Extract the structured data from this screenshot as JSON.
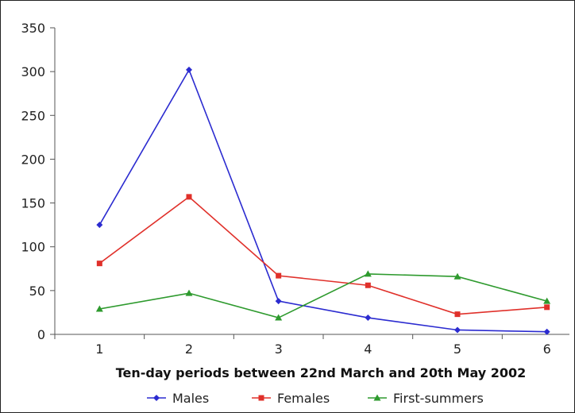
{
  "chart_data": {
    "type": "line",
    "title": "",
    "xlabel": "Ten-day periods between 22nd March and 20th May 2002",
    "ylabel": "",
    "categories": [
      "1",
      "2",
      "3",
      "4",
      "5",
      "6"
    ],
    "ylim": [
      0,
      350
    ],
    "yticks": [
      0,
      50,
      100,
      150,
      200,
      250,
      300,
      350
    ],
    "grid": false,
    "legend_position": "bottom",
    "series": [
      {
        "name": "Males",
        "color": "#2b2bd0",
        "values": [
          125,
          302,
          38,
          19,
          5,
          3
        ]
      },
      {
        "name": "Females",
        "color": "#e0302a",
        "values": [
          81,
          157,
          67,
          56,
          23,
          31
        ]
      },
      {
        "name": "First-summers",
        "color": "#2e9a2e",
        "values": [
          29,
          47,
          19,
          69,
          66,
          38
        ]
      }
    ]
  }
}
